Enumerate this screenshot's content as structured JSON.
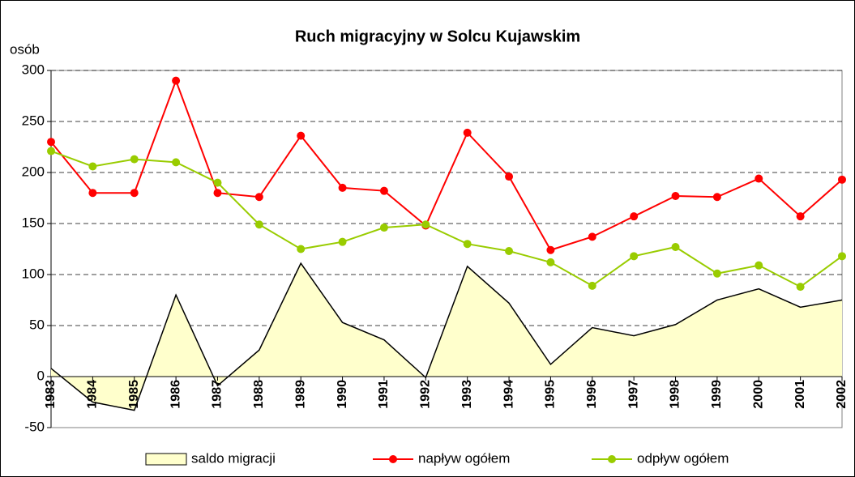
{
  "chart_data": {
    "type": "line",
    "title": "Ruch migracyjny w Solcu Kujawskim",
    "y_label": "osób",
    "categories": [
      "1983",
      "1984",
      "1985",
      "1986",
      "1987",
      "1988",
      "1989",
      "1990",
      "1991",
      "1992",
      "1993",
      "1994",
      "1995",
      "1996",
      "1997",
      "1998",
      "1999",
      "2000",
      "2001",
      "2002"
    ],
    "series": [
      {
        "name": "saldo migracji",
        "type": "area",
        "color": "#ffffcc",
        "values": [
          8,
          -25,
          -33,
          80,
          -9,
          26,
          111,
          53,
          36,
          -1,
          108,
          72,
          12,
          48,
          40,
          51,
          75,
          86,
          68,
          75
        ]
      },
      {
        "name": "napływ ogółem",
        "type": "line",
        "color": "#ff0000",
        "values": [
          230,
          180,
          180,
          290,
          180,
          176,
          236,
          185,
          182,
          148,
          239,
          196,
          124,
          137,
          157,
          177,
          176,
          194,
          157,
          193
        ]
      },
      {
        "name": "odpływ ogółem",
        "type": "line",
        "color": "#99cc00",
        "values": [
          221,
          206,
          213,
          210,
          190,
          149,
          125,
          132,
          146,
          149,
          130,
          123,
          112,
          89,
          118,
          127,
          101,
          109,
          88,
          118
        ]
      }
    ],
    "ylim": [
      -50,
      300
    ],
    "yticks": [
      -50,
      0,
      50,
      100,
      150,
      200,
      250,
      300
    ],
    "grid": true,
    "legend": "bottom"
  }
}
